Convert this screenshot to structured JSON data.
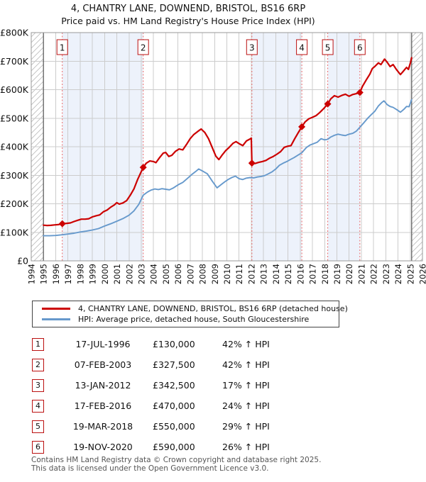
{
  "title": {
    "line1": "4, CHANTRY LANE, DOWNEND, BRISTOL, BS16 6RP",
    "line2": "Price paid vs. HM Land Registry's House Price Index (HPI)"
  },
  "colors": {
    "property_line": "#cc0000",
    "hpi_line": "#6699cc",
    "marker_dash_line": "#e96a6a",
    "badge_border": "#bb1111",
    "shaded_band": "#edf2fb",
    "gridline": "#cccccc",
    "plot_border": "#999999",
    "data_edge_line": "#555555",
    "hatch_line": "#bbbbbb",
    "footer_text": "#555555"
  },
  "chart_data": {
    "type": "line",
    "x_axis": {
      "min": 1994,
      "max": 2026,
      "ticks": [
        1994,
        1995,
        1996,
        1997,
        1998,
        1999,
        2000,
        2001,
        2002,
        2003,
        2004,
        2005,
        2006,
        2007,
        2008,
        2009,
        2010,
        2011,
        2012,
        2013,
        2014,
        2015,
        2016,
        2017,
        2018,
        2019,
        2020,
        2021,
        2022,
        2023,
        2024,
        2025,
        2026
      ]
    },
    "y_axis": {
      "min": 0,
      "max": 800000,
      "tick_step": 100000,
      "tick_labels": [
        "£0",
        "£100K",
        "£200K",
        "£300K",
        "£400K",
        "£500K",
        "£600K",
        "£700K",
        "£800K"
      ]
    },
    "grid": true,
    "hatched_regions": [
      [
        1994,
        1995
      ],
      [
        2025.12,
        2026
      ]
    ],
    "shaded_bands": [
      [
        1996.54,
        2003.16
      ],
      [
        2012.05,
        2016.13
      ],
      [
        2018.25,
        2020.88
      ]
    ],
    "markers": [
      {
        "n": "1",
        "year": 1996.54,
        "value": 130000
      },
      {
        "n": "2",
        "year": 2003.16,
        "value": 327500
      },
      {
        "n": "3",
        "year": 2012.05,
        "value": 342500
      },
      {
        "n": "4",
        "year": 2016.13,
        "value": 470000
      },
      {
        "n": "5",
        "year": 2018.25,
        "value": 550000
      },
      {
        "n": "6",
        "year": 2020.88,
        "value": 590000
      }
    ],
    "series": [
      {
        "name": "4, CHANTRY LANE, DOWNEND, BRISTOL, BS16 6RP (detached house)",
        "color": "#cc0000",
        "width": 2.2,
        "points": [
          [
            1995.0,
            125000
          ],
          [
            1995.3,
            124000
          ],
          [
            1995.6,
            124500
          ],
          [
            1995.9,
            126000
          ],
          [
            1996.2,
            127000
          ],
          [
            1996.54,
            130000
          ],
          [
            1996.9,
            131500
          ],
          [
            1997.2,
            133000
          ],
          [
            1997.5,
            138000
          ],
          [
            1997.8,
            142000
          ],
          [
            1998.1,
            146000
          ],
          [
            1998.4,
            146000
          ],
          [
            1998.7,
            147500
          ],
          [
            1999.0,
            154000
          ],
          [
            1999.3,
            158000
          ],
          [
            1999.6,
            161000
          ],
          [
            1999.9,
            172000
          ],
          [
            2000.2,
            178000
          ],
          [
            2000.5,
            188000
          ],
          [
            2000.8,
            196000
          ],
          [
            2001.0,
            204000
          ],
          [
            2001.2,
            199000
          ],
          [
            2001.5,
            203000
          ],
          [
            2001.8,
            211000
          ],
          [
            2002.1,
            230000
          ],
          [
            2002.4,
            252000
          ],
          [
            2002.7,
            285000
          ],
          [
            2002.95,
            308000
          ],
          [
            2003.16,
            327500
          ],
          [
            2003.4,
            342000
          ],
          [
            2003.7,
            350000
          ],
          [
            2004.0,
            348000
          ],
          [
            2004.2,
            344000
          ],
          [
            2004.5,
            362000
          ],
          [
            2004.8,
            378000
          ],
          [
            2005.0,
            380000
          ],
          [
            2005.25,
            366000
          ],
          [
            2005.5,
            370000
          ],
          [
            2005.8,
            384000
          ],
          [
            2006.1,
            392000
          ],
          [
            2006.4,
            389000
          ],
          [
            2006.7,
            408000
          ],
          [
            2007.0,
            428000
          ],
          [
            2007.3,
            443000
          ],
          [
            2007.6,
            453000
          ],
          [
            2007.9,
            462000
          ],
          [
            2008.2,
            450000
          ],
          [
            2008.5,
            428000
          ],
          [
            2008.8,
            398000
          ],
          [
            2009.1,
            367000
          ],
          [
            2009.35,
            355000
          ],
          [
            2009.6,
            370000
          ],
          [
            2009.9,
            386000
          ],
          [
            2010.2,
            398000
          ],
          [
            2010.5,
            412000
          ],
          [
            2010.75,
            418000
          ],
          [
            2011.0,
            411000
          ],
          [
            2011.3,
            404000
          ],
          [
            2011.6,
            420000
          ],
          [
            2011.85,
            426000
          ],
          [
            2012.0,
            430000
          ],
          [
            2012.05,
            342500
          ],
          [
            2012.3,
            341000
          ],
          [
            2012.6,
            345000
          ],
          [
            2012.9,
            348000
          ],
          [
            2013.2,
            352000
          ],
          [
            2013.5,
            360000
          ],
          [
            2013.8,
            366000
          ],
          [
            2014.1,
            374000
          ],
          [
            2014.4,
            383000
          ],
          [
            2014.7,
            398000
          ],
          [
            2015.0,
            402000
          ],
          [
            2015.25,
            404000
          ],
          [
            2015.55,
            428000
          ],
          [
            2015.85,
            450000
          ],
          [
            2016.13,
            470000
          ],
          [
            2016.4,
            487000
          ],
          [
            2016.7,
            498000
          ],
          [
            2017.0,
            503000
          ],
          [
            2017.3,
            509000
          ],
          [
            2017.6,
            520000
          ],
          [
            2017.95,
            535000
          ],
          [
            2018.25,
            550000
          ],
          [
            2018.5,
            568000
          ],
          [
            2018.8,
            579000
          ],
          [
            2019.1,
            574000
          ],
          [
            2019.4,
            580000
          ],
          [
            2019.7,
            584000
          ],
          [
            2020.0,
            577000
          ],
          [
            2020.3,
            583000
          ],
          [
            2020.6,
            586000
          ],
          [
            2020.88,
            590000
          ],
          [
            2021.1,
            612000
          ],
          [
            2021.4,
            634000
          ],
          [
            2021.7,
            655000
          ],
          [
            2021.9,
            674000
          ],
          [
            2022.1,
            681000
          ],
          [
            2022.4,
            694000
          ],
          [
            2022.6,
            688000
          ],
          [
            2022.9,
            707000
          ],
          [
            2023.1,
            697000
          ],
          [
            2023.35,
            681000
          ],
          [
            2023.6,
            688000
          ],
          [
            2023.9,
            669000
          ],
          [
            2024.2,
            653000
          ],
          [
            2024.5,
            668000
          ],
          [
            2024.7,
            678000
          ],
          [
            2024.85,
            671000
          ],
          [
            2025.0,
            692000
          ],
          [
            2025.12,
            712000
          ]
        ]
      },
      {
        "name": "HPI: Average price, detached house, South Gloucestershire",
        "color": "#6699cc",
        "width": 1.9,
        "points": [
          [
            1995.0,
            88000
          ],
          [
            1995.5,
            88000
          ],
          [
            1996.0,
            89000
          ],
          [
            1996.54,
            91500
          ],
          [
            1997.0,
            94000
          ],
          [
            1997.5,
            97000
          ],
          [
            1998.0,
            101000
          ],
          [
            1998.5,
            104000
          ],
          [
            1999.0,
            108000
          ],
          [
            1999.5,
            113000
          ],
          [
            2000.0,
            122000
          ],
          [
            2000.5,
            130000
          ],
          [
            2001.0,
            139000
          ],
          [
            2001.5,
            148000
          ],
          [
            2002.0,
            160000
          ],
          [
            2002.4,
            175000
          ],
          [
            2002.8,
            198000
          ],
          [
            2003.16,
            230000
          ],
          [
            2003.5,
            241000
          ],
          [
            2003.8,
            248000
          ],
          [
            2004.1,
            252000
          ],
          [
            2004.4,
            250000
          ],
          [
            2004.7,
            253000
          ],
          [
            2005.0,
            251000
          ],
          [
            2005.3,
            249000
          ],
          [
            2005.6,
            255000
          ],
          [
            2006.0,
            266000
          ],
          [
            2006.4,
            275000
          ],
          [
            2006.8,
            290000
          ],
          [
            2007.2,
            305000
          ],
          [
            2007.5,
            315000
          ],
          [
            2007.7,
            322000
          ],
          [
            2008.0,
            315000
          ],
          [
            2008.4,
            305000
          ],
          [
            2008.8,
            280000
          ],
          [
            2009.2,
            256000
          ],
          [
            2009.5,
            266000
          ],
          [
            2009.8,
            276000
          ],
          [
            2010.1,
            285000
          ],
          [
            2010.4,
            292000
          ],
          [
            2010.7,
            297000
          ],
          [
            2011.0,
            288000
          ],
          [
            2011.3,
            285000
          ],
          [
            2011.6,
            290000
          ],
          [
            2011.9,
            292000
          ],
          [
            2012.2,
            291000
          ],
          [
            2012.5,
            294000
          ],
          [
            2012.8,
            296000
          ],
          [
            2013.1,
            299000
          ],
          [
            2013.4,
            305000
          ],
          [
            2013.7,
            312000
          ],
          [
            2014.0,
            322000
          ],
          [
            2014.3,
            335000
          ],
          [
            2014.6,
            342000
          ],
          [
            2014.9,
            348000
          ],
          [
            2015.2,
            355000
          ],
          [
            2015.5,
            362000
          ],
          [
            2015.8,
            370000
          ],
          [
            2016.13,
            379000
          ],
          [
            2016.5,
            397000
          ],
          [
            2016.8,
            406000
          ],
          [
            2017.1,
            411000
          ],
          [
            2017.4,
            416000
          ],
          [
            2017.7,
            428000
          ],
          [
            2018.0,
            424000
          ],
          [
            2018.25,
            426000
          ],
          [
            2018.5,
            434000
          ],
          [
            2018.8,
            440000
          ],
          [
            2019.1,
            444000
          ],
          [
            2019.4,
            441000
          ],
          [
            2019.7,
            439000
          ],
          [
            2020.0,
            444000
          ],
          [
            2020.3,
            447000
          ],
          [
            2020.6,
            455000
          ],
          [
            2020.88,
            468000
          ],
          [
            2021.2,
            484000
          ],
          [
            2021.5,
            499000
          ],
          [
            2021.8,
            512000
          ],
          [
            2022.1,
            524000
          ],
          [
            2022.4,
            543000
          ],
          [
            2022.7,
            556000
          ],
          [
            2022.85,
            561000
          ],
          [
            2023.1,
            548000
          ],
          [
            2023.35,
            541000
          ],
          [
            2023.6,
            538000
          ],
          [
            2023.9,
            530000
          ],
          [
            2024.2,
            521000
          ],
          [
            2024.5,
            532000
          ],
          [
            2024.7,
            541000
          ],
          [
            2024.9,
            540000
          ],
          [
            2025.12,
            565000
          ]
        ]
      }
    ]
  },
  "legend": {
    "items": [
      {
        "label": "4, CHANTRY LANE, DOWNEND, BRISTOL, BS16 6RP (detached house)",
        "color": "#cc0000"
      },
      {
        "label": "HPI: Average price, detached house, South Gloucestershire",
        "color": "#6699cc"
      }
    ]
  },
  "table": {
    "rows": [
      {
        "n": "1",
        "date": "17-JUL-1996",
        "price": "£130,000",
        "hpi": "42% ↑ HPI"
      },
      {
        "n": "2",
        "date": "07-FEB-2003",
        "price": "£327,500",
        "hpi": "42% ↑ HPI"
      },
      {
        "n": "3",
        "date": "13-JAN-2012",
        "price": "£342,500",
        "hpi": "17% ↑ HPI"
      },
      {
        "n": "4",
        "date": "17-FEB-2016",
        "price": "£470,000",
        "hpi": "24% ↑ HPI"
      },
      {
        "n": "5",
        "date": "19-MAR-2018",
        "price": "£550,000",
        "hpi": "29% ↑ HPI"
      },
      {
        "n": "6",
        "date": "19-NOV-2020",
        "price": "£590,000",
        "hpi": "26% ↑ HPI"
      }
    ]
  },
  "footer": {
    "line1": "Contains HM Land Registry data © Crown copyright and database right 2025.",
    "line2": "This data is licensed under the Open Government Licence v3.0."
  }
}
